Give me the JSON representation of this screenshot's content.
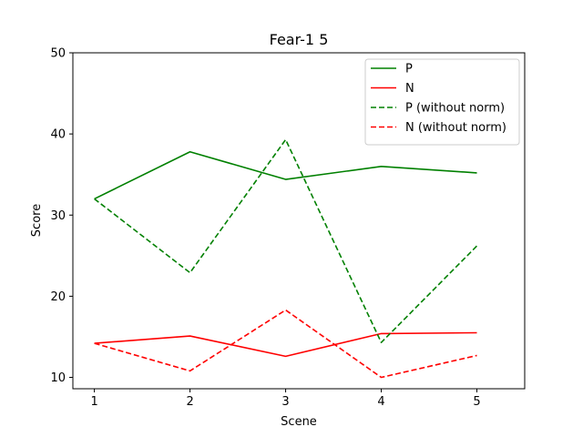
{
  "chart_data": {
    "type": "line",
    "title": "Fear-1 5",
    "xlabel": "Scene",
    "ylabel": "Score",
    "x": [
      1,
      2,
      3,
      4,
      5
    ],
    "xticks": [
      "1",
      "2",
      "3",
      "4",
      "5"
    ],
    "yticks": [
      "10",
      "20",
      "30",
      "40",
      "50"
    ],
    "xlim": [
      0.775,
      5.5
    ],
    "ylim": [
      8.6,
      50
    ],
    "grid": false,
    "legend_position": "top-right",
    "series": [
      {
        "name": "P",
        "values": [
          32.0,
          37.8,
          34.4,
          36.0,
          35.2
        ],
        "color": "#008000",
        "dash": "solid"
      },
      {
        "name": "N",
        "values": [
          14.2,
          15.1,
          12.6,
          15.4,
          15.5
        ],
        "color": "#ff0000",
        "dash": "solid"
      },
      {
        "name": "P (without norm)",
        "values": [
          32.0,
          22.9,
          39.3,
          14.3,
          26.2
        ],
        "color": "#008000",
        "dash": "dashed"
      },
      {
        "name": "N (without norm)",
        "values": [
          14.2,
          10.8,
          18.3,
          10.0,
          12.7
        ],
        "color": "#ff0000",
        "dash": "dashed"
      }
    ]
  }
}
